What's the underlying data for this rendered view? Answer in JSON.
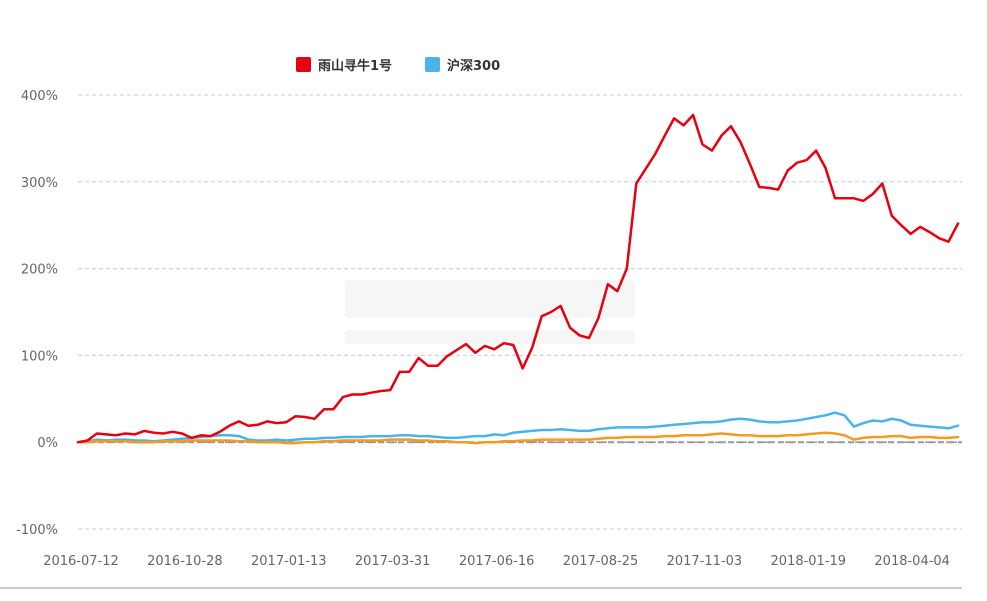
{
  "colors": {
    "series_red": "#e60012",
    "series_blue": "#4ab3ea",
    "series_orange": "#f39a1f",
    "grid": "#cccccc",
    "zero_line": "#999999",
    "axis": "#cccccc"
  },
  "chart_data": {
    "type": "line",
    "title": "",
    "xlabel": "",
    "ylabel": "",
    "ylim": [
      -100,
      400
    ],
    "yticks": [
      -100,
      0,
      100,
      200,
      300,
      400
    ],
    "ytick_labels": [
      "-100%",
      "0%",
      "100%",
      "200%",
      "300%",
      "400%"
    ],
    "xtick_labels": [
      "2016-07-12",
      "2016-10-28",
      "2017-01-13",
      "2017-03-31",
      "2017-06-16",
      "2017-08-25",
      "2017-11-03",
      "2018-01-19",
      "2018-04-04"
    ],
    "legend": {
      "placement": "top-center",
      "entries": [
        "雨山寻牛1号",
        "沪深300"
      ]
    },
    "series": [
      {
        "name": "雨山寻牛1号",
        "color": "#e60012",
        "values": [
          0,
          2,
          10,
          9,
          8,
          10,
          9,
          13,
          11,
          10,
          12,
          10,
          5,
          8,
          7,
          12,
          19,
          24,
          19,
          20,
          24,
          22,
          23,
          30,
          29,
          27,
          38,
          38,
          52,
          55,
          55,
          57,
          59,
          60,
          81,
          81,
          97,
          88,
          88,
          99,
          106,
          113,
          103,
          111,
          107,
          114,
          112,
          85,
          109,
          145,
          150,
          157,
          132,
          123,
          120,
          143,
          182,
          174,
          200,
          298,
          315,
          332,
          353,
          373,
          365,
          377,
          343,
          336,
          353,
          364,
          346,
          321,
          294,
          293,
          291,
          313,
          322,
          325,
          336,
          316,
          281,
          281,
          281,
          278,
          286,
          298,
          261,
          250,
          240,
          248,
          242,
          235,
          231,
          252
        ]
      },
      {
        "name": "沪深300",
        "color": "#4ab3ea",
        "values": [
          0,
          1,
          3,
          2,
          3,
          3,
          2,
          2,
          1,
          2,
          3,
          4,
          5,
          6,
          7,
          8,
          8,
          7,
          3,
          2,
          2,
          3,
          2,
          3,
          4,
          4,
          5,
          5,
          6,
          6,
          6,
          7,
          7,
          7,
          8,
          8,
          7,
          7,
          6,
          5,
          5,
          6,
          7,
          7,
          9,
          8,
          11,
          12,
          13,
          14,
          14,
          15,
          14,
          13,
          13,
          15,
          16,
          17,
          17,
          17,
          17,
          18,
          19,
          20,
          21,
          22,
          23,
          23,
          24,
          26,
          27,
          26,
          24,
          23,
          23,
          24,
          25,
          27,
          29,
          31,
          34,
          31,
          18,
          22,
          25,
          24,
          27,
          25,
          20,
          19,
          18,
          17,
          16,
          19
        ]
      },
      {
        "name": "",
        "color": "#f39a1f",
        "values": [
          0,
          0,
          1,
          1,
          1,
          1,
          0,
          0,
          0,
          1,
          1,
          1,
          2,
          2,
          2,
          2,
          2,
          1,
          1,
          0,
          0,
          0,
          -1,
          -1,
          0,
          0,
          1,
          1,
          2,
          2,
          2,
          2,
          2,
          3,
          3,
          3,
          2,
          2,
          1,
          1,
          0,
          0,
          -1,
          0,
          0,
          1,
          1,
          2,
          2,
          3,
          3,
          3,
          3,
          3,
          3,
          4,
          5,
          5,
          6,
          6,
          6,
          6,
          7,
          7,
          8,
          8,
          8,
          9,
          10,
          9,
          8,
          8,
          7,
          7,
          7,
          8,
          8,
          9,
          10,
          11,
          10,
          8,
          3,
          5,
          6,
          6,
          7,
          7,
          5,
          6,
          6,
          5,
          5,
          6
        ]
      },
      {
        "name": "",
        "color": "#999999",
        "dashed": true,
        "values": [
          0,
          0
        ]
      }
    ]
  }
}
